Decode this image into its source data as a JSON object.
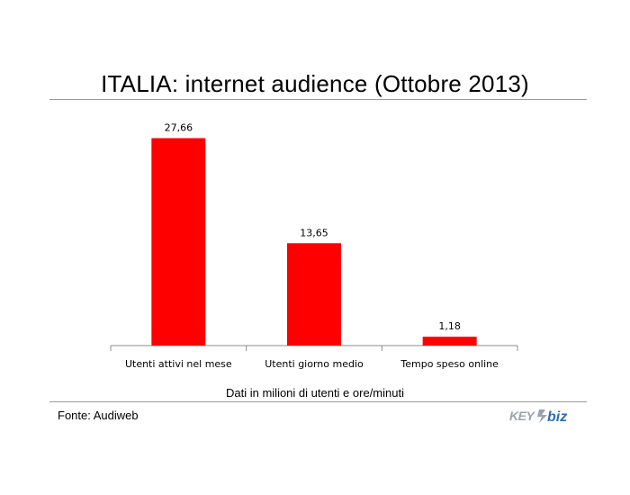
{
  "title": "ITALIA: internet audience (Ottobre 2013)",
  "note": "Dati in milioni di utenti e ore/minuti",
  "source": "Fonte: Audiweb",
  "logo": {
    "part1": "KEY",
    "part2": "biz",
    "part1_color": "#9aa3ad",
    "part2_color": "#2e6db4"
  },
  "chart_data": {
    "type": "bar",
    "title": "ITALIA: internet audience (Ottobre 2013)",
    "categories": [
      "Utenti attivi nel mese",
      "Utenti giorno medio",
      "Tempo speso online"
    ],
    "values": [
      27.66,
      13.65,
      1.18
    ],
    "data_labels": [
      "27,66",
      "13,65",
      "1,18"
    ],
    "ylim": [
      0,
      30
    ],
    "bar_color": "#ff0000",
    "grid": false,
    "legend": "none"
  }
}
